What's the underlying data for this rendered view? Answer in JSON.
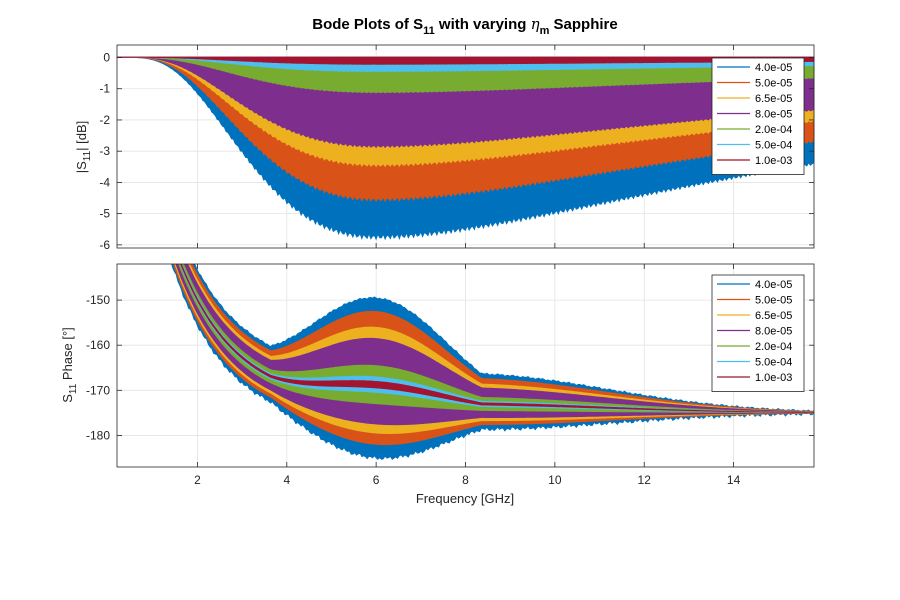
{
  "figure": {
    "title": "Bode Plots of S11 with varying ηm Sapphire",
    "title_parts": {
      "a": "Bode Plots of S",
      "a_sub": "11",
      "b": " with varying ",
      "eta": "η",
      "eta_sub": "m",
      "c": " Sapphire"
    }
  },
  "chart_data": [
    {
      "type": "area",
      "title": "",
      "xlabel": "Frequency [GHz]",
      "ylabel": "|S11| [dB]",
      "ylabel_parts": {
        "a": "|S",
        "sub": "11",
        "b": "| [dB]"
      },
      "xlim": [
        0.2,
        15.8
      ],
      "ylim": [
        -6.1,
        0.4
      ],
      "xticks": [
        2,
        4,
        6,
        8,
        10,
        12,
        14
      ],
      "yticks": [
        0,
        -1,
        -2,
        -3,
        -4,
        -5,
        -6
      ],
      "grid": true,
      "legend_position": "top-right",
      "series": [
        {
          "name": "4.0e-05",
          "color": "#0072BD",
          "min_at_6GHz_dB": -5.75
        },
        {
          "name": "5.0e-05",
          "color": "#D95319",
          "min_at_6GHz_dB": -4.55
        },
        {
          "name": "6.5e-05",
          "color": "#EDB120",
          "min_at_6GHz_dB": -3.45
        },
        {
          "name": "8.0e-05",
          "color": "#7E2F8E",
          "min_at_6GHz_dB": -2.85
        },
        {
          "name": "2.0e-04",
          "color": "#77AC30",
          "min_at_6GHz_dB": -1.12
        },
        {
          "name": "5.0e-04",
          "color": "#4DBEEE",
          "min_at_6GHz_dB": -0.45
        },
        {
          "name": "1.0e-03",
          "color": "#A2142F",
          "min_at_6GHz_dB": -0.22
        }
      ]
    },
    {
      "type": "area",
      "title": "",
      "xlabel": "Frequency [GHz]",
      "ylabel": "S11 Phase [°]",
      "ylabel_parts": {
        "a": "S",
        "sub": "11",
        "b": " Phase [°]"
      },
      "xlim": [
        0.2,
        15.8
      ],
      "ylim": [
        -187,
        -142
      ],
      "xticks": [
        2,
        4,
        6,
        8,
        10,
        12,
        14
      ],
      "yticks": [
        -150,
        -160,
        -170,
        -180
      ],
      "grid": true,
      "legend_position": "top-right",
      "series": [
        {
          "name": "4.0e-05",
          "color": "#0072BD",
          "upper_at_6GHz_deg": -149.5,
          "lower_at_6GHz_deg": -185.0
        },
        {
          "name": "5.0e-05",
          "color": "#D95319",
          "upper_at_6GHz_deg": -152.5,
          "lower_at_6GHz_deg": -182.0
        },
        {
          "name": "6.5e-05",
          "color": "#EDB120",
          "upper_at_6GHz_deg": -156.0,
          "lower_at_6GHz_deg": -179.5
        },
        {
          "name": "8.0e-05",
          "color": "#7E2F8E",
          "upper_at_6GHz_deg": -158.5,
          "lower_at_6GHz_deg": -177.5
        },
        {
          "name": "2.0e-04",
          "color": "#77AC30",
          "upper_at_6GHz_deg": -164.5,
          "lower_at_6GHz_deg": -173.0
        },
        {
          "name": "5.0e-04",
          "color": "#4DBEEE",
          "upper_at_6GHz_deg": -167.0,
          "lower_at_6GHz_deg": -170.5
        },
        {
          "name": "1.0e-03",
          "color": "#A2142F",
          "upper_at_6GHz_deg": -168.0,
          "lower_at_6GHz_deg": -169.5
        }
      ]
    }
  ]
}
